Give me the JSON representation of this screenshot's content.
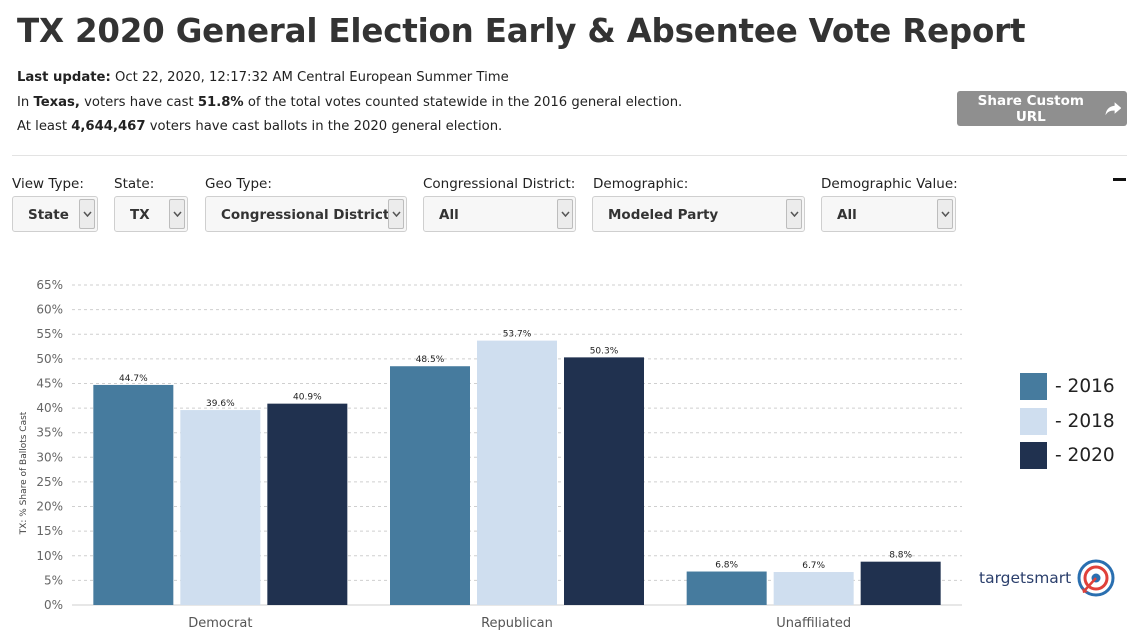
{
  "header": {
    "title": "TX 2020 General Election Early & Absentee Vote Report",
    "last_update_label": "Last update:",
    "last_update_value": " Oct 22, 2020, 12:17:32 AM Central European Summer Time",
    "line2_a": "In ",
    "line2_state": "Texas,",
    "line2_b": " voters have cast ",
    "line2_pct": "51.8%",
    "line2_c": " of the total votes counted statewide in the 2016 general election.",
    "line3_a": "At least ",
    "line3_count": "4,644,467",
    "line3_b": " voters have cast ballots in the 2020 general election.",
    "share_label": "Share Custom URL",
    "share_icon": "share-arrow-icon"
  },
  "filters": [
    {
      "label": "View Type:",
      "value": "State"
    },
    {
      "label": "State:",
      "value": "TX"
    },
    {
      "label": "Geo Type:",
      "value": "Congressional District"
    },
    {
      "label": "Congressional District:",
      "value": "All"
    },
    {
      "label": "Demographic:",
      "value": "Modeled Party"
    },
    {
      "label": "Demographic Value:",
      "value": "All"
    }
  ],
  "chart_data": {
    "type": "bar",
    "categories": [
      "Democrat",
      "Republican",
      "Unaffiliated"
    ],
    "series": [
      {
        "name": "- 2016",
        "values": [
          44.7,
          48.5,
          6.8
        ],
        "color": "#467b9e"
      },
      {
        "name": "- 2018",
        "values": [
          39.6,
          53.7,
          6.7
        ],
        "color": "#cfdeef"
      },
      {
        "name": "- 2020",
        "values": [
          40.9,
          50.3,
          8.8
        ],
        "color": "#20314f"
      }
    ],
    "data_labels": [
      [
        "44.7%",
        "48.5%",
        "6.8%"
      ],
      [
        "39.6%",
        "53.7%",
        "6.7%"
      ],
      [
        "40.9%",
        "50.3%",
        "8.8%"
      ]
    ],
    "ylabel": "TX: % Share of Ballots Cast",
    "yticks": [
      "0%",
      "5%",
      "10%",
      "15%",
      "20%",
      "25%",
      "30%",
      "35%",
      "40%",
      "45%",
      "50%",
      "55%",
      "60%",
      "65%"
    ],
    "ylim": [
      0,
      65
    ],
    "grid": true,
    "legend_position": "right"
  },
  "logo": {
    "text": "targetsmart"
  }
}
